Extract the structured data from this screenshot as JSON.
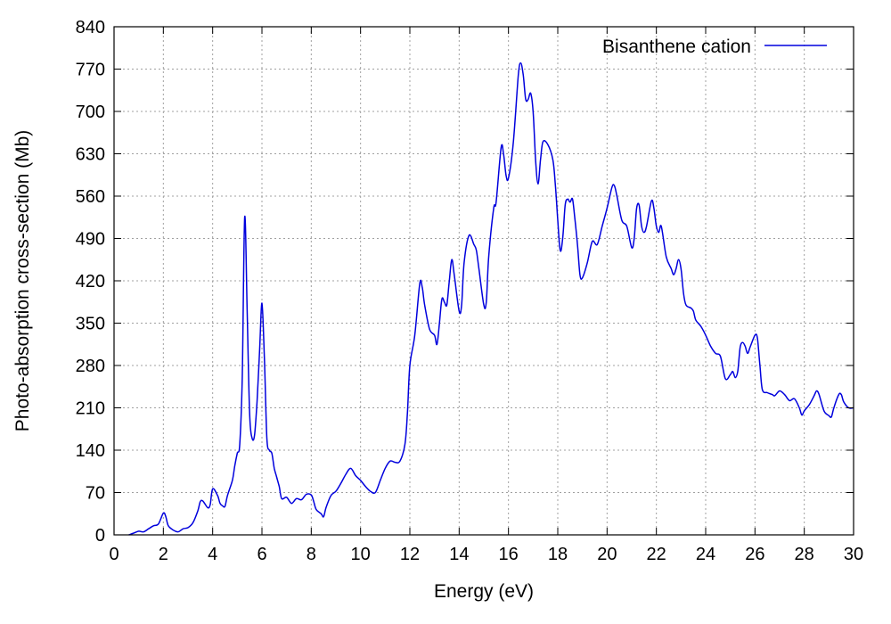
{
  "chart_data": {
    "type": "line",
    "title": "",
    "xlabel": "Energy (eV)",
    "ylabel": "Photo-absorption cross-section (Mb)",
    "xlim": [
      0,
      30
    ],
    "ylim": [
      0,
      840
    ],
    "xticks": [
      0,
      2,
      4,
      6,
      8,
      10,
      12,
      14,
      16,
      18,
      20,
      22,
      24,
      26,
      28,
      30
    ],
    "yticks": [
      0,
      70,
      140,
      210,
      280,
      350,
      420,
      490,
      560,
      630,
      700,
      770,
      840
    ],
    "grid": true,
    "legend_position": "top-right",
    "series": [
      {
        "name": "Bisanthene cation",
        "color": "#0000dd",
        "points": [
          [
            0.6,
            0
          ],
          [
            0.8,
            3
          ],
          [
            1.0,
            6
          ],
          [
            1.2,
            5
          ],
          [
            1.4,
            10
          ],
          [
            1.6,
            15
          ],
          [
            1.8,
            18
          ],
          [
            2.0,
            36
          ],
          [
            2.1,
            30
          ],
          [
            2.2,
            15
          ],
          [
            2.4,
            8
          ],
          [
            2.6,
            5
          ],
          [
            2.8,
            10
          ],
          [
            3.0,
            12
          ],
          [
            3.2,
            20
          ],
          [
            3.4,
            40
          ],
          [
            3.5,
            55
          ],
          [
            3.6,
            56
          ],
          [
            3.8,
            45
          ],
          [
            3.9,
            50
          ],
          [
            4.0,
            76
          ],
          [
            4.2,
            65
          ],
          [
            4.3,
            52
          ],
          [
            4.4,
            48
          ],
          [
            4.5,
            47
          ],
          [
            4.6,
            65
          ],
          [
            4.8,
            90
          ],
          [
            4.9,
            115
          ],
          [
            5.0,
            135
          ],
          [
            5.1,
            150
          ],
          [
            5.2,
            260
          ],
          [
            5.3,
            525
          ],
          [
            5.4,
            370
          ],
          [
            5.5,
            200
          ],
          [
            5.6,
            160
          ],
          [
            5.7,
            165
          ],
          [
            5.8,
            220
          ],
          [
            5.9,
            300
          ],
          [
            6.0,
            383
          ],
          [
            6.1,
            290
          ],
          [
            6.2,
            160
          ],
          [
            6.3,
            140
          ],
          [
            6.4,
            135
          ],
          [
            6.5,
            110
          ],
          [
            6.6,
            95
          ],
          [
            6.7,
            80
          ],
          [
            6.8,
            60
          ],
          [
            7.0,
            62
          ],
          [
            7.2,
            52
          ],
          [
            7.4,
            60
          ],
          [
            7.6,
            58
          ],
          [
            7.8,
            67
          ],
          [
            8.0,
            66
          ],
          [
            8.1,
            55
          ],
          [
            8.2,
            42
          ],
          [
            8.4,
            35
          ],
          [
            8.5,
            30
          ],
          [
            8.6,
            45
          ],
          [
            8.8,
            65
          ],
          [
            9.0,
            72
          ],
          [
            9.2,
            85
          ],
          [
            9.4,
            100
          ],
          [
            9.6,
            110
          ],
          [
            9.8,
            98
          ],
          [
            10.0,
            90
          ],
          [
            10.2,
            80
          ],
          [
            10.4,
            72
          ],
          [
            10.6,
            70
          ],
          [
            10.8,
            90
          ],
          [
            11.0,
            110
          ],
          [
            11.2,
            122
          ],
          [
            11.4,
            120
          ],
          [
            11.6,
            122
          ],
          [
            11.8,
            150
          ],
          [
            11.9,
            200
          ],
          [
            12.0,
            280
          ],
          [
            12.2,
            330
          ],
          [
            12.4,
            415
          ],
          [
            12.5,
            410
          ],
          [
            12.6,
            380
          ],
          [
            12.8,
            340
          ],
          [
            13.0,
            330
          ],
          [
            13.1,
            315
          ],
          [
            13.2,
            350
          ],
          [
            13.3,
            390
          ],
          [
            13.4,
            385
          ],
          [
            13.5,
            380
          ],
          [
            13.6,
            420
          ],
          [
            13.7,
            455
          ],
          [
            13.8,
            430
          ],
          [
            14.0,
            370
          ],
          [
            14.1,
            380
          ],
          [
            14.2,
            450
          ],
          [
            14.4,
            495
          ],
          [
            14.6,
            480
          ],
          [
            14.7,
            470
          ],
          [
            14.8,
            440
          ],
          [
            15.0,
            380
          ],
          [
            15.1,
            385
          ],
          [
            15.2,
            460
          ],
          [
            15.4,
            540
          ],
          [
            15.5,
            550
          ],
          [
            15.7,
            640
          ],
          [
            15.8,
            630
          ],
          [
            15.9,
            595
          ],
          [
            16.0,
            590
          ],
          [
            16.2,
            650
          ],
          [
            16.4,
            760
          ],
          [
            16.5,
            780
          ],
          [
            16.6,
            760
          ],
          [
            16.7,
            720
          ],
          [
            16.8,
            720
          ],
          [
            16.9,
            730
          ],
          [
            17.0,
            700
          ],
          [
            17.1,
            620
          ],
          [
            17.2,
            580
          ],
          [
            17.3,
            620
          ],
          [
            17.4,
            650
          ],
          [
            17.6,
            645
          ],
          [
            17.8,
            620
          ],
          [
            17.9,
            580
          ],
          [
            18.0,
            520
          ],
          [
            18.1,
            470
          ],
          [
            18.2,
            490
          ],
          [
            18.3,
            545
          ],
          [
            18.4,
            555
          ],
          [
            18.5,
            550
          ],
          [
            18.6,
            555
          ],
          [
            18.7,
            520
          ],
          [
            18.8,
            480
          ],
          [
            18.9,
            430
          ],
          [
            19.0,
            425
          ],
          [
            19.2,
            450
          ],
          [
            19.4,
            485
          ],
          [
            19.6,
            480
          ],
          [
            19.8,
            510
          ],
          [
            20.0,
            540
          ],
          [
            20.2,
            575
          ],
          [
            20.3,
            577
          ],
          [
            20.4,
            560
          ],
          [
            20.6,
            520
          ],
          [
            20.8,
            510
          ],
          [
            21.0,
            475
          ],
          [
            21.1,
            490
          ],
          [
            21.2,
            540
          ],
          [
            21.3,
            545
          ],
          [
            21.4,
            510
          ],
          [
            21.5,
            500
          ],
          [
            21.6,
            510
          ],
          [
            21.8,
            552
          ],
          [
            21.9,
            540
          ],
          [
            22.0,
            510
          ],
          [
            22.1,
            500
          ],
          [
            22.2,
            510
          ],
          [
            22.4,
            460
          ],
          [
            22.6,
            440
          ],
          [
            22.7,
            430
          ],
          [
            22.8,
            440
          ],
          [
            22.9,
            455
          ],
          [
            23.0,
            440
          ],
          [
            23.1,
            400
          ],
          [
            23.2,
            380
          ],
          [
            23.4,
            375
          ],
          [
            23.5,
            370
          ],
          [
            23.6,
            355
          ],
          [
            23.8,
            345
          ],
          [
            24.0,
            330
          ],
          [
            24.2,
            312
          ],
          [
            24.4,
            300
          ],
          [
            24.6,
            295
          ],
          [
            24.8,
            258
          ],
          [
            25.0,
            265
          ],
          [
            25.1,
            270
          ],
          [
            25.2,
            260
          ],
          [
            25.3,
            270
          ],
          [
            25.4,
            310
          ],
          [
            25.5,
            318
          ],
          [
            25.6,
            312
          ],
          [
            25.7,
            300
          ],
          [
            25.8,
            310
          ],
          [
            26.0,
            330
          ],
          [
            26.1,
            325
          ],
          [
            26.2,
            280
          ],
          [
            26.3,
            240
          ],
          [
            26.5,
            235
          ],
          [
            26.7,
            232
          ],
          [
            26.8,
            230
          ],
          [
            27.0,
            238
          ],
          [
            27.2,
            232
          ],
          [
            27.4,
            222
          ],
          [
            27.6,
            225
          ],
          [
            27.8,
            210
          ],
          [
            27.9,
            198
          ],
          [
            28.0,
            205
          ],
          [
            28.2,
            215
          ],
          [
            28.4,
            230
          ],
          [
            28.5,
            238
          ],
          [
            28.6,
            232
          ],
          [
            28.8,
            205
          ],
          [
            29.0,
            197
          ],
          [
            29.1,
            195
          ],
          [
            29.2,
            210
          ],
          [
            29.4,
            232
          ],
          [
            29.5,
            232
          ],
          [
            29.6,
            220
          ],
          [
            29.8,
            210
          ],
          [
            30.0,
            210
          ]
        ]
      }
    ]
  }
}
